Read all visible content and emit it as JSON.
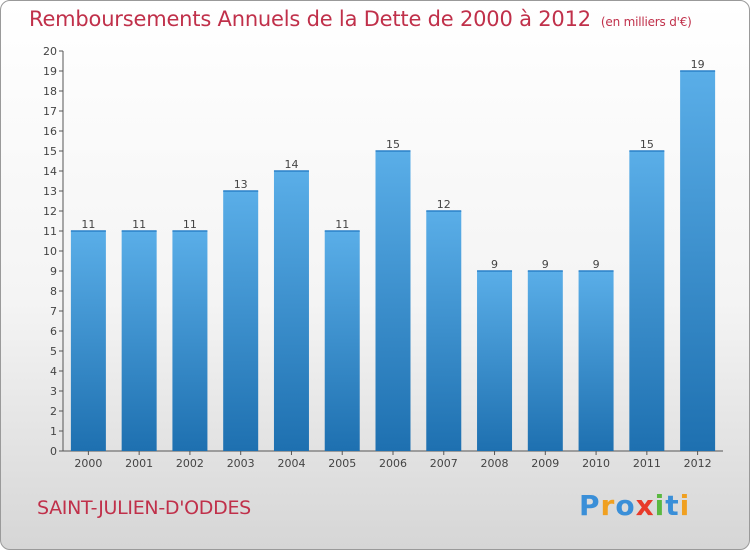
{
  "header": {
    "title": "Remboursements Annuels de la Dette de 2000 à 2012",
    "subtitle": "(en milliers d'€)"
  },
  "footer": {
    "commune": "SAINT-JULIEN-D'ODDES",
    "logo": [
      "P",
      "r",
      "o",
      "x",
      "i",
      "t",
      "i"
    ]
  },
  "colors": {
    "title": "#c0304a",
    "bar_top": "#5aaee8",
    "bar_bottom": "#1e70b0"
  },
  "chart_data": {
    "type": "bar",
    "title": "Remboursements Annuels de la Dette de 2000 à 2012",
    "subtitle": "(en milliers d'€)",
    "xlabel": "",
    "ylabel": "",
    "categories": [
      "2000",
      "2001",
      "2002",
      "2003",
      "2004",
      "2005",
      "2006",
      "2007",
      "2008",
      "2009",
      "2010",
      "2011",
      "2012"
    ],
    "values": [
      11,
      11,
      11,
      13,
      14,
      11,
      15,
      12,
      9,
      9,
      9,
      15,
      19
    ],
    "ylim": [
      0,
      20
    ],
    "yticks": [
      0,
      1,
      2,
      3,
      4,
      5,
      6,
      7,
      8,
      9,
      10,
      11,
      12,
      13,
      14,
      15,
      16,
      17,
      18,
      19,
      20
    ],
    "grid": false,
    "legend": "none"
  }
}
